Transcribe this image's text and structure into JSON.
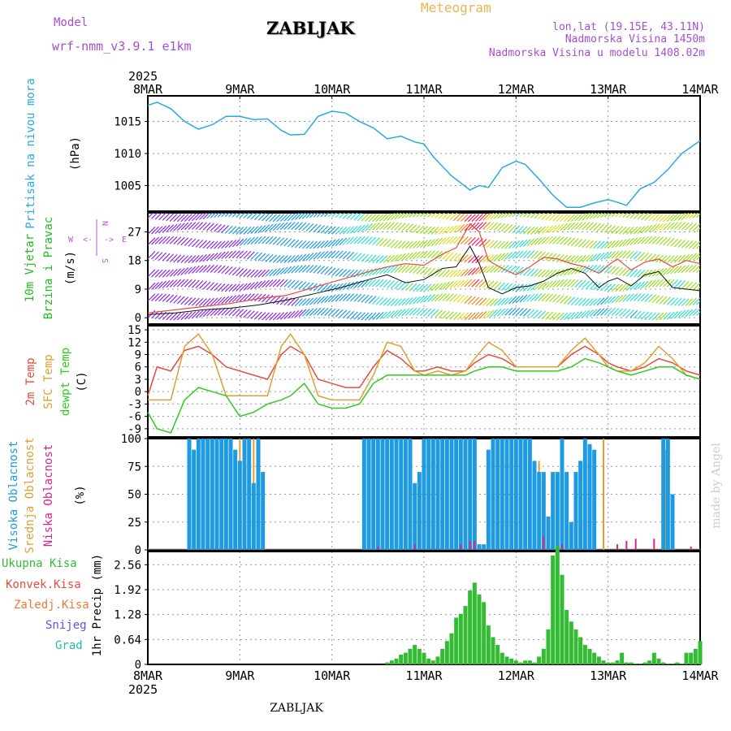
{
  "header": {
    "model_label": "Model",
    "model_name": "wrf-nmm_v3.9.1  e1km",
    "station": "ZABLJAK",
    "title": "Meteogram",
    "coords": "lon,lat (19.15E, 43.11N)",
    "elevation": "Nadmorska Visina 1450m",
    "model_elevation": "Nadmorska Visina u modelu 1408.02m",
    "year": "2025",
    "footer_station": "ZABLJAK",
    "credit": "made by Angel"
  },
  "colors": {
    "pressure": "#29aae2",
    "temp2m": "#e74c3c",
    "sfc": "#e0a030",
    "dewpt": "#2ecc1f",
    "wind_label": "#22bb22",
    "high_cloud": "#1e9be0",
    "mid_cloud": "#e0a030",
    "low_cloud": "#d6258c",
    "precip_total": "#33bb33",
    "conv": "#e74c3c",
    "frz": "#f07a30",
    "snow": "#5555ee",
    "grad": "#22bbaa",
    "compass": "#bb55dd"
  },
  "chart_data": [
    {
      "type": "line",
      "panel": "pressure",
      "ylabel": "Pritisak na nivou mora",
      "unit": "(hPa)",
      "ylim": [
        1001,
        1019
      ],
      "yticks": [
        1005,
        1010,
        1015
      ],
      "x_days": [
        0,
        0.1,
        0.25,
        0.4,
        0.55,
        0.7,
        0.85,
        1.0,
        1.15,
        1.3,
        1.45,
        1.55,
        1.7,
        1.85,
        2.0,
        2.15,
        2.3,
        2.45,
        2.6,
        2.75,
        2.9,
        3.0,
        3.1,
        3.3,
        3.5,
        3.6,
        3.7,
        3.85,
        4.0,
        4.1,
        4.25,
        4.4,
        4.55,
        4.7,
        4.85,
        5.0,
        5.1,
        5.2,
        5.35,
        5.5,
        5.65,
        5.8,
        6.0
      ],
      "values": [
        1017.5,
        1018.0,
        1017.0,
        1015.0,
        1013.8,
        1014.5,
        1015.8,
        1015.8,
        1015.3,
        1015.4,
        1013.6,
        1012.9,
        1013.0,
        1015.8,
        1016.6,
        1016.3,
        1015.0,
        1014.0,
        1012.3,
        1012.7,
        1011.8,
        1011.5,
        1009.5,
        1006.5,
        1004.3,
        1005.0,
        1004.7,
        1007.8,
        1008.8,
        1008.3,
        1006.0,
        1003.5,
        1001.6,
        1001.6,
        1002.3,
        1002.8,
        1002.4,
        1001.9,
        1004.5,
        1005.5,
        1007.5,
        1010.0,
        1012.0
      ],
      "grid": true
    },
    {
      "type": "line",
      "panel": "wind",
      "ylabel": [
        "10m Vjetar",
        "Brzina i Pravac"
      ],
      "unit": "(m/s)",
      "ylim": [
        -2,
        33
      ],
      "yticks": [
        0,
        9,
        18,
        27
      ],
      "series": [
        {
          "x_days": [
            0,
            0.3,
            0.6,
            0.9,
            1.2,
            1.5,
            1.8,
            2.1,
            2.4,
            2.6,
            2.8,
            3.0,
            3.2,
            3.35,
            3.5,
            3.6,
            3.7,
            3.85,
            4.0,
            4.15,
            4.3,
            4.45,
            4.6,
            4.75,
            4.9,
            5.0,
            5.1,
            5.25,
            5.4,
            5.55,
            5.7,
            5.85,
            6.0
          ],
          "values": [
            1.0,
            1.5,
            2.5,
            3.0,
            4.0,
            5.5,
            7.5,
            9.5,
            12.0,
            13.5,
            11.0,
            12.0,
            15.5,
            16.0,
            22.5,
            17.0,
            9.5,
            7.5,
            9.5,
            10.0,
            11.5,
            14.0,
            15.5,
            14.0,
            9.5,
            11.5,
            12.5,
            10.0,
            13.5,
            14.5,
            9.5,
            9.0,
            8.5
          ]
        },
        {
          "x_days": [
            0,
            0.3,
            0.6,
            0.9,
            1.2,
            1.5,
            1.8,
            2.1,
            2.4,
            2.6,
            2.8,
            3.0,
            3.2,
            3.35,
            3.5,
            3.6,
            3.7,
            3.85,
            4.0,
            4.15,
            4.3,
            4.45,
            4.6,
            4.75,
            4.9,
            5.0,
            5.1,
            5.25,
            5.4,
            5.55,
            5.7,
            5.85,
            6.0
          ],
          "values": [
            1.5,
            2.5,
            3.5,
            4.5,
            6.0,
            7.0,
            9.5,
            12.0,
            14.5,
            16.0,
            17.0,
            16.5,
            20.0,
            22.0,
            29.5,
            27.0,
            18.0,
            15.5,
            13.5,
            16.0,
            19.0,
            18.5,
            17.0,
            16.0,
            14.0,
            16.5,
            18.5,
            15.0,
            17.5,
            18.5,
            16.0,
            18.0,
            17.0
          ]
        }
      ],
      "grid": true
    },
    {
      "type": "line",
      "panel": "temperature",
      "ylabel": [
        "2m Temp",
        "SFC Temp",
        "dewpt Temp"
      ],
      "unit": "(C)",
      "ylim": [
        -11,
        16
      ],
      "yticks": [
        -9,
        -6,
        -3,
        0,
        3,
        6,
        9,
        12,
        15
      ],
      "x_days": [
        0,
        0.1,
        0.25,
        0.4,
        0.55,
        0.7,
        0.85,
        1.0,
        1.15,
        1.3,
        1.45,
        1.55,
        1.7,
        1.85,
        2.0,
        2.15,
        2.3,
        2.45,
        2.6,
        2.75,
        2.9,
        3.0,
        3.15,
        3.3,
        3.45,
        3.55,
        3.7,
        3.85,
        4.0,
        4.15,
        4.3,
        4.45,
        4.6,
        4.75,
        4.9,
        5.0,
        5.1,
        5.25,
        5.4,
        5.55,
        5.7,
        5.85,
        6.0
      ],
      "series": [
        {
          "name": "2m Temp",
          "values": [
            -1,
            6,
            5,
            10,
            11,
            9,
            6,
            5,
            4,
            3,
            9,
            11,
            9,
            3,
            2,
            1,
            1,
            6,
            10,
            8,
            5,
            5,
            6,
            5,
            5,
            7,
            9,
            8,
            6,
            6,
            6,
            6,
            9,
            11,
            9,
            7,
            6,
            5,
            6,
            8,
            7,
            5,
            4
          ]
        },
        {
          "name": "SFC Temp",
          "values": [
            -2,
            -2,
            -2,
            11,
            14,
            9,
            -1,
            -1,
            -1,
            -1,
            11,
            14,
            9,
            -1,
            -2,
            -2,
            -2,
            4,
            12,
            11,
            5,
            4,
            5,
            4,
            5,
            8,
            12,
            10,
            6,
            6,
            6,
            6,
            10,
            13,
            9,
            6,
            5,
            5,
            7,
            11,
            8,
            4,
            3
          ]
        },
        {
          "name": "dewpt Temp",
          "values": [
            -5,
            -9,
            -10,
            -2,
            1,
            0,
            -1,
            -6,
            -5,
            -3,
            -2,
            -1,
            2,
            -3,
            -4,
            -4,
            -3,
            2,
            4,
            4,
            4,
            4,
            4,
            4,
            4,
            5,
            6,
            6,
            5,
            5,
            5,
            5,
            6,
            8,
            7,
            6,
            5,
            4,
            5,
            6,
            6,
            4,
            3
          ]
        }
      ],
      "grid": true
    },
    {
      "type": "bar",
      "panel": "cloud",
      "ylabel": [
        "Visoka Oblacnost",
        "Srednja Oblacnost",
        "Niska Oblacnost"
      ],
      "unit": "(%)",
      "ylim": [
        0,
        100
      ],
      "yticks": [
        0,
        25,
        50,
        75,
        100
      ],
      "series": [
        {
          "name": "Visoka Oblacnost",
          "x_days": [
            0.45,
            0.5,
            0.55,
            0.6,
            0.65,
            0.7,
            0.75,
            0.8,
            0.85,
            0.9,
            0.95,
            1.0,
            1.05,
            1.1,
            1.15,
            1.2,
            1.25,
            2.35,
            2.4,
            2.45,
            2.5,
            2.55,
            2.6,
            2.65,
            2.7,
            2.75,
            2.8,
            2.85,
            2.9,
            2.95,
            3.0,
            3.05,
            3.1,
            3.15,
            3.2,
            3.25,
            3.3,
            3.35,
            3.4,
            3.45,
            3.5,
            3.55,
            3.6,
            3.65,
            3.7,
            3.75,
            3.8,
            3.85,
            3.9,
            3.95,
            4.0,
            4.05,
            4.1,
            4.15,
            4.2,
            4.25,
            4.3,
            4.35,
            4.4,
            4.45,
            4.5,
            4.55,
            4.6,
            4.65,
            4.7,
            4.75,
            4.8,
            4.85,
            5.6,
            5.65,
            5.7
          ],
          "values": [
            100,
            90,
            100,
            100,
            100,
            100,
            100,
            100,
            100,
            100,
            90,
            80,
            100,
            100,
            60,
            100,
            70,
            100,
            100,
            100,
            100,
            100,
            100,
            100,
            100,
            100,
            100,
            100,
            60,
            70,
            100,
            100,
            100,
            100,
            100,
            100,
            100,
            100,
            100,
            100,
            100,
            100,
            5,
            5,
            90,
            100,
            100,
            100,
            100,
            100,
            100,
            100,
            100,
            100,
            80,
            70,
            70,
            30,
            70,
            70,
            100,
            70,
            25,
            70,
            80,
            100,
            95,
            90,
            100,
            100,
            50
          ]
        },
        {
          "name": "Srednja Oblacnost",
          "x_days": [
            0.5,
            0.75,
            1.0,
            1.05,
            1.1,
            1.15,
            1.2,
            4.25,
            4.95,
            5.62
          ],
          "values": [
            50,
            100,
            100,
            100,
            100,
            100,
            100,
            80,
            100,
            90
          ]
        },
        {
          "name": "Niska Oblacnost",
          "x_days": [
            2.5,
            2.9,
            3.4,
            3.5,
            3.55,
            4.3,
            4.5,
            5.1,
            5.2,
            5.3,
            5.5,
            5.9
          ],
          "values": [
            3,
            5,
            5,
            8,
            8,
            12,
            5,
            5,
            8,
            10,
            10,
            3
          ]
        }
      ],
      "grid": true
    },
    {
      "type": "bar",
      "panel": "precip",
      "ylabel": [
        "Ukupna Kisa",
        "Konvek.Kisa",
        "Zaledj.Kisa",
        "Snijeg",
        "Grad"
      ],
      "unit": "1hr Precip (mm)",
      "ylim": [
        0,
        2.9
      ],
      "yticks": [
        0,
        0.64,
        1.28,
        1.92,
        2.56
      ],
      "series": [
        {
          "name": "Ukupna Kisa",
          "x_days": [
            2.6,
            2.65,
            2.7,
            2.75,
            2.8,
            2.85,
            2.9,
            2.95,
            3.0,
            3.05,
            3.1,
            3.15,
            3.2,
            3.25,
            3.3,
            3.35,
            3.4,
            3.45,
            3.5,
            3.55,
            3.6,
            3.65,
            3.7,
            3.75,
            3.8,
            3.85,
            3.9,
            3.95,
            4.0,
            4.05,
            4.1,
            4.15,
            4.2,
            4.25,
            4.3,
            4.35,
            4.4,
            4.45,
            4.5,
            4.55,
            4.6,
            4.65,
            4.7,
            4.75,
            4.8,
            4.85,
            4.9,
            4.95,
            5.0,
            5.05,
            5.1,
            5.15,
            5.2,
            5.25,
            5.3,
            5.35,
            5.4,
            5.45,
            5.5,
            5.55,
            5.6,
            5.65,
            5.7,
            5.75,
            5.8,
            5.85,
            5.9,
            5.95,
            6.0
          ],
          "values": [
            0.05,
            0.1,
            0.15,
            0.25,
            0.3,
            0.4,
            0.5,
            0.4,
            0.3,
            0.15,
            0.1,
            0.2,
            0.4,
            0.6,
            0.8,
            1.2,
            1.3,
            1.5,
            1.9,
            2.1,
            1.8,
            1.6,
            1.0,
            0.7,
            0.5,
            0.3,
            0.2,
            0.15,
            0.1,
            0.05,
            0.1,
            0.1,
            0.05,
            0.2,
            0.4,
            0.9,
            2.8,
            3.05,
            2.3,
            1.4,
            1.1,
            0.9,
            0.7,
            0.5,
            0.4,
            0.3,
            0.2,
            0.1,
            0.05,
            0.05,
            0.1,
            0.3,
            0.05,
            0.05,
            0.02,
            0.02,
            0.05,
            0.1,
            0.3,
            0.15,
            0.05,
            0.02,
            0.02,
            0.05,
            0.02,
            0.3,
            0.3,
            0.4,
            0.6
          ]
        }
      ],
      "grid": true
    }
  ],
  "x_axis": {
    "labels": [
      "8MAR",
      "9MAR",
      "10MAR",
      "11MAR",
      "12MAR",
      "13MAR",
      "14MAR"
    ],
    "days": [
      0,
      1,
      2,
      3,
      4,
      5,
      6
    ]
  },
  "compass": {
    "w": "W",
    "e": "E",
    "n": "N",
    "s": "S",
    "arrow_left": "<-",
    "arrow_right": "->"
  }
}
